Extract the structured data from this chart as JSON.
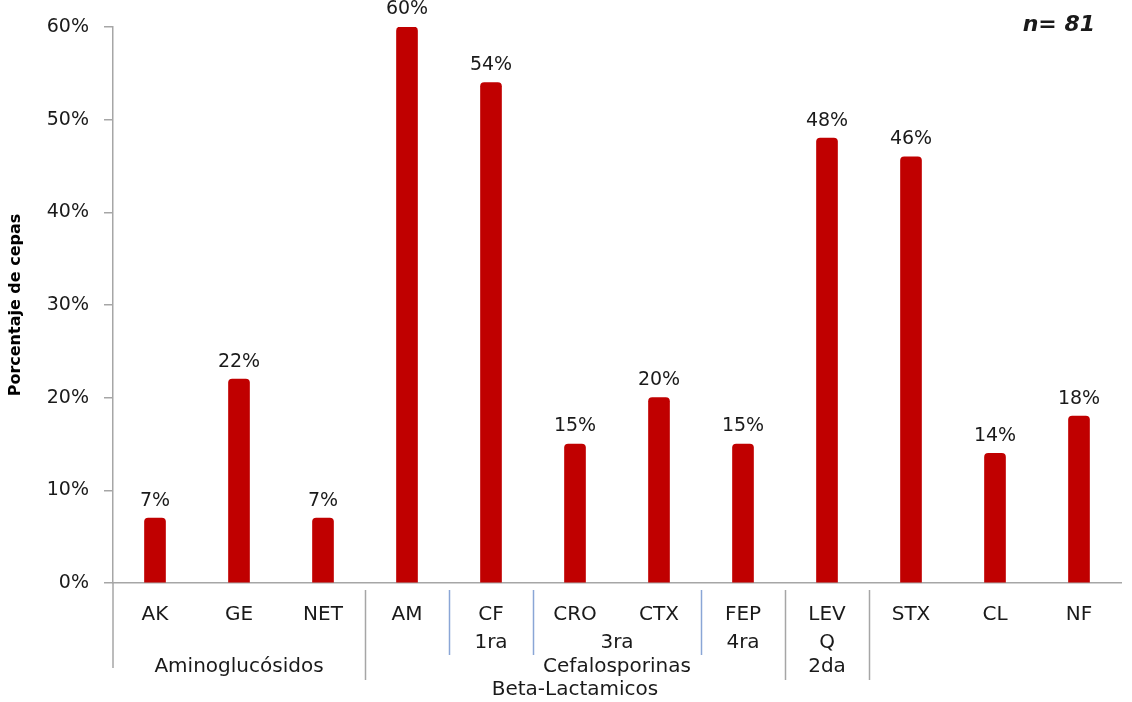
{
  "chart_data": {
    "type": "bar",
    "ylabel": "Porcentaje de cepas",
    "categories": [
      "AK",
      "GE",
      "NET",
      "AM",
      "CF",
      "CRO",
      "CTX",
      "FEP",
      "LEV",
      "STX",
      "CL",
      "NF"
    ],
    "values": [
      7,
      22,
      7,
      60,
      54,
      15,
      20,
      15,
      48,
      46,
      14,
      18
    ],
    "value_labels": [
      "7%",
      "22%",
      "7%",
      "60%",
      "54%",
      "15%",
      "20%",
      "15%",
      "48%",
      "46%",
      "14%",
      "18%"
    ],
    "color": "#c00000",
    "ylim": [
      0,
      60
    ],
    "yticks": [
      {
        "value": 0,
        "label": "0%"
      },
      {
        "value": 10,
        "label": "10%"
      },
      {
        "value": 20,
        "label": "20%"
      },
      {
        "value": 30,
        "label": "30%"
      },
      {
        "value": 40,
        "label": "40%"
      },
      {
        "value": 50,
        "label": "50%"
      },
      {
        "value": 60,
        "label": "60%"
      }
    ],
    "annotations": [
      "n= 81",
      "Aminoglucósidos",
      "1ra",
      "3ra",
      "4ra",
      "Q",
      "Cefalosporinas",
      "2da",
      "Beta-Lactamicos"
    ],
    "grid": false,
    "legend": false
  }
}
